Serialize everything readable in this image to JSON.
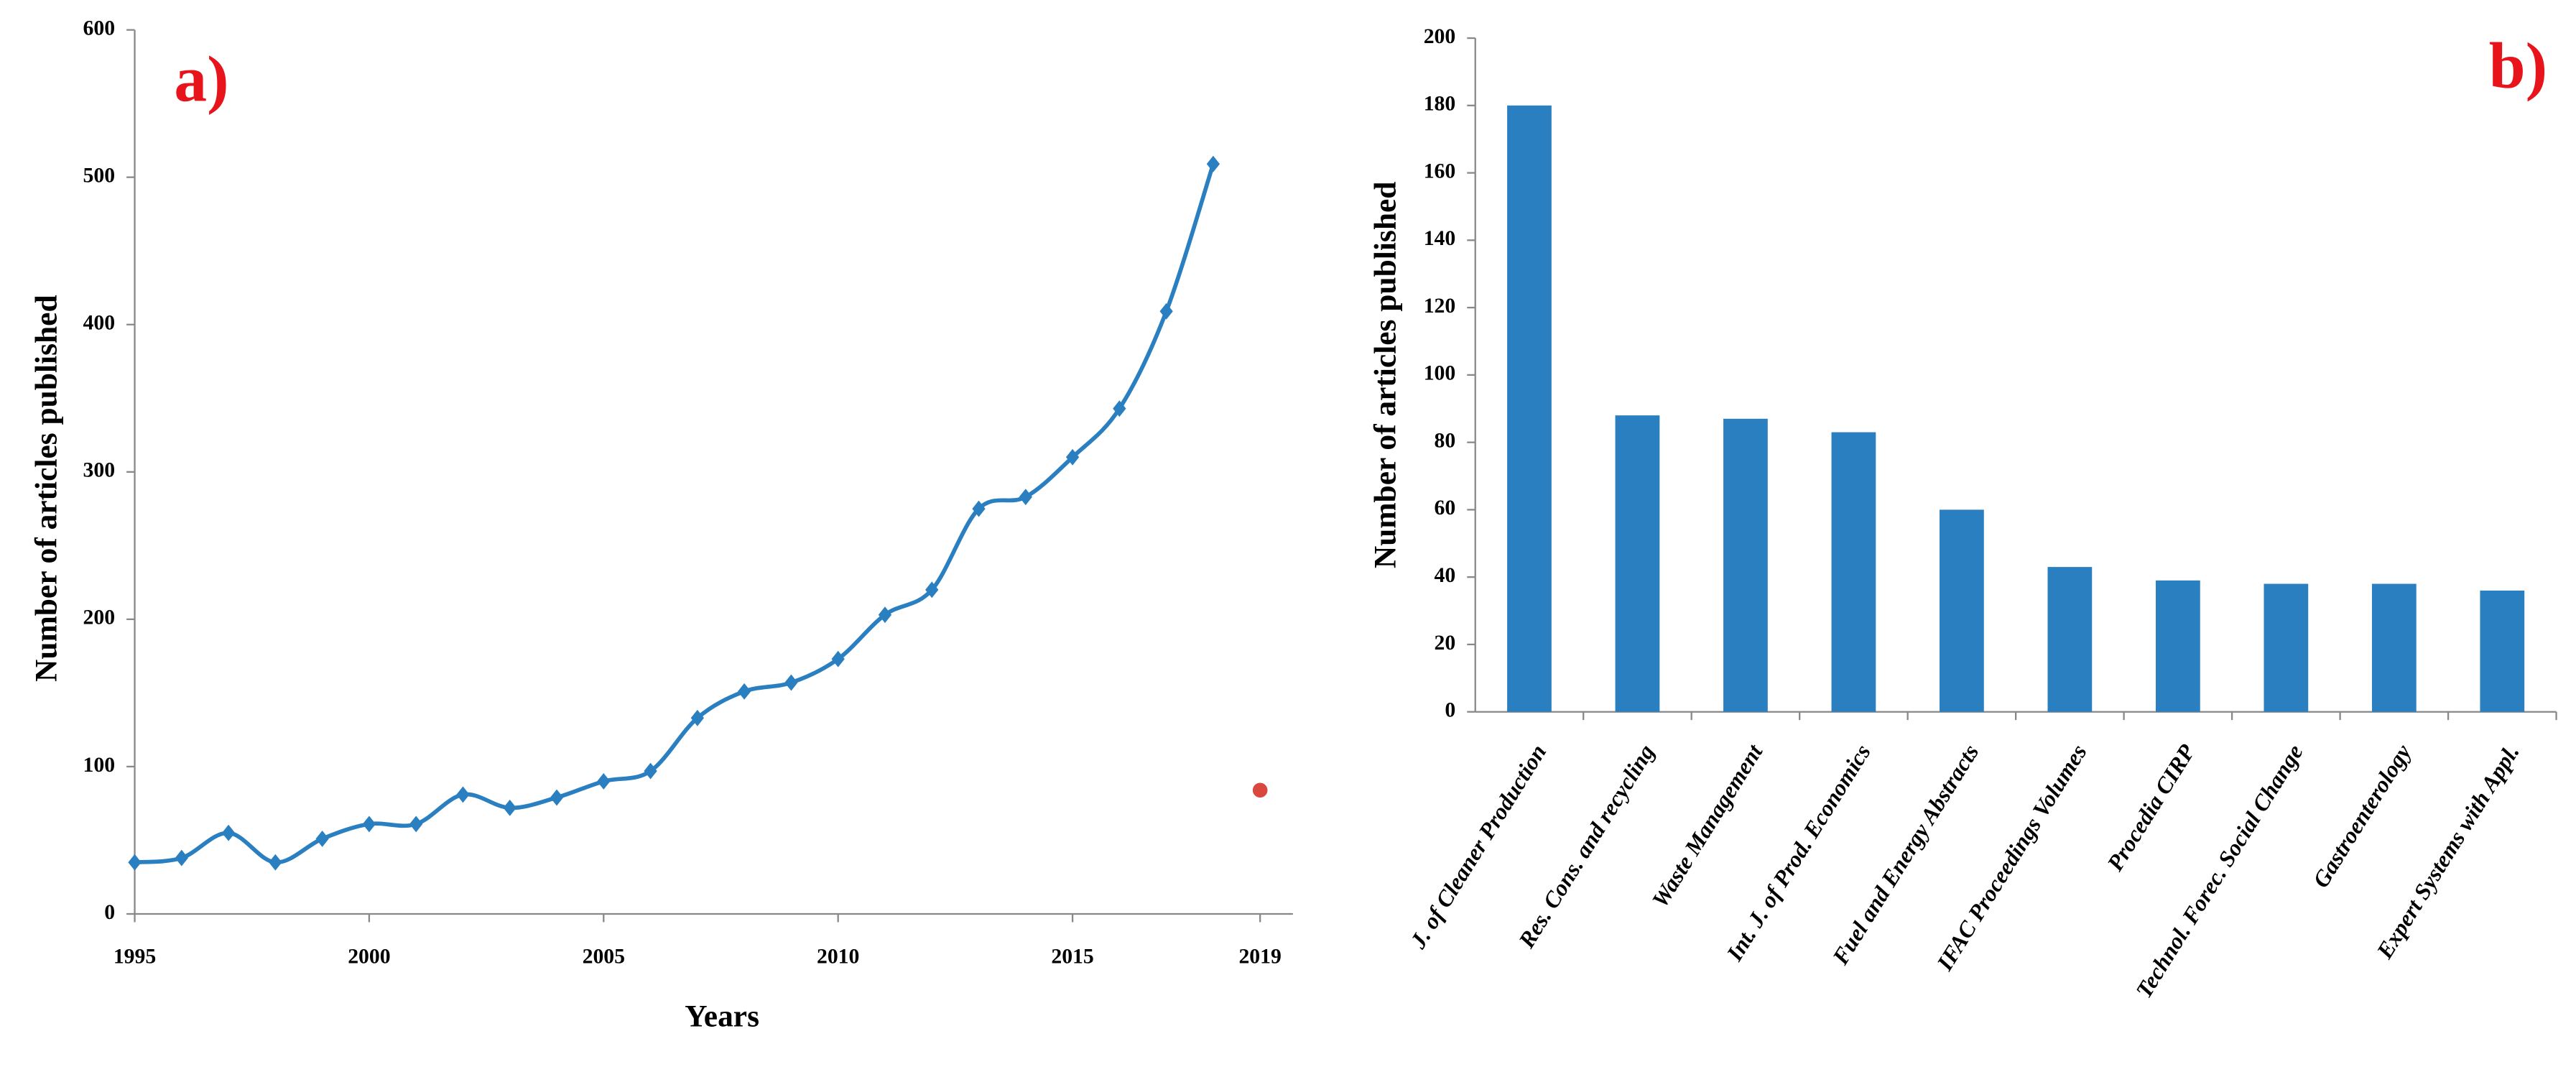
{
  "chart_data": [
    {
      "type": "line",
      "annotation": "a)",
      "xlabel": "Years",
      "ylabel": "Number of articles published",
      "x": [
        1995,
        1996,
        1997,
        1998,
        1999,
        2000,
        2001,
        2002,
        2003,
        2004,
        2005,
        2006,
        2007,
        2008,
        2009,
        2010,
        2011,
        2012,
        2013,
        2014,
        2015,
        2016,
        2017,
        2018,
        2019
      ],
      "xlim": [
        1995,
        2019.7
      ],
      "xticks": [
        1995,
        2000,
        2005,
        2010,
        2015,
        2019
      ],
      "ylim": [
        0,
        600
      ],
      "yticks": [
        0,
        100,
        200,
        300,
        400,
        500,
        600
      ],
      "series": [
        {
          "color": "#2a7fc1",
          "marker": "diamond",
          "smooth": true,
          "values": [
            35,
            38,
            55,
            35,
            51,
            61,
            61,
            81,
            72,
            79,
            90,
            97,
            133,
            151,
            157,
            173,
            203,
            220,
            275,
            283,
            310,
            343,
            409,
            509,
            null
          ]
        },
        {
          "color": "#d9473f",
          "marker": "circle",
          "values": [
            null,
            null,
            null,
            null,
            null,
            null,
            null,
            null,
            null,
            null,
            null,
            null,
            null,
            null,
            null,
            null,
            null,
            null,
            null,
            null,
            null,
            null,
            null,
            null,
            84
          ]
        }
      ]
    },
    {
      "type": "bar",
      "annotation": "b)",
      "ylabel": "Number of articles published",
      "color": "#2a7fc1",
      "categories": [
        "J. of Cleaner Production",
        "Res. Cons. and recycling",
        "Waste Management",
        "Int. J. of Prod. Economics",
        "Fuel and Energy Abstracts",
        "IFAC Proceedings Volumes",
        "Procedia CIRP",
        "Technol. Forec. Social Change",
        "Gastroenterology",
        "Expert Systems with Appl."
      ],
      "values": [
        180,
        88,
        87,
        83,
        60,
        43,
        39,
        38,
        38,
        36
      ],
      "ylim": [
        0,
        200
      ],
      "yticks": [
        0,
        20,
        40,
        60,
        80,
        100,
        120,
        140,
        160,
        180,
        200
      ]
    }
  ]
}
